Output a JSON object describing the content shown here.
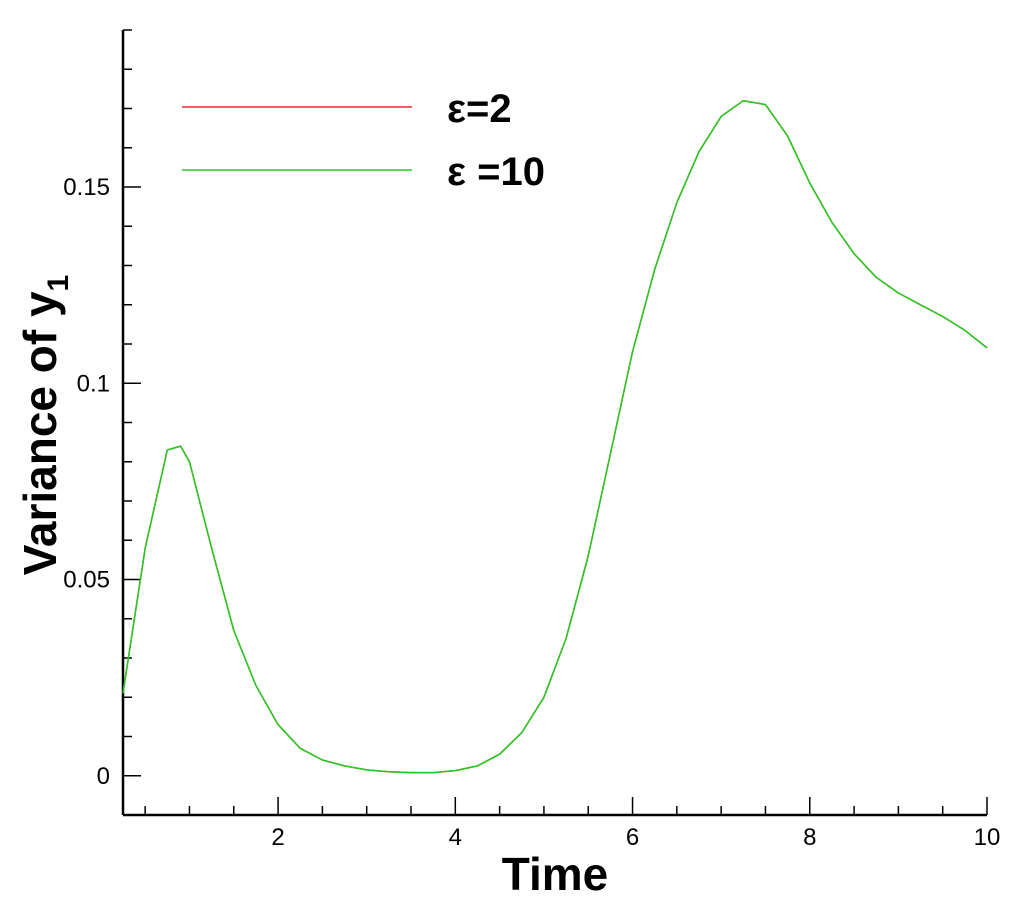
{
  "chart_data": {
    "type": "line",
    "xlabel": "Time",
    "ylabel_main": "Variance of y",
    "ylabel_sub": "1",
    "xlim": [
      0.25,
      10
    ],
    "ylim": [
      -0.01,
      0.19
    ],
    "x_ticks": [
      2,
      4,
      6,
      8,
      10
    ],
    "x_tick_labels": [
      "2",
      "4",
      "6",
      "8",
      "10"
    ],
    "y_ticks": [
      0,
      0.05,
      0.1,
      0.15
    ],
    "y_tick_labels": [
      "0",
      "0.05",
      "0.1",
      "0.15"
    ],
    "grid": false,
    "legend_position": "top-left",
    "colors": {
      "eps2": "#e03030",
      "eps10": "#22cc22",
      "axis": "#000000"
    },
    "series": [
      {
        "name": "ε=2",
        "x": [
          0.25,
          0.5,
          0.75,
          0.9,
          1.0,
          1.25,
          1.5,
          1.75,
          2.0,
          2.25,
          2.5,
          2.75,
          3.0,
          3.25,
          3.5,
          3.75,
          4.0,
          4.25,
          4.5,
          4.75,
          5.0,
          5.25,
          5.5,
          5.75,
          6.0,
          6.25,
          6.5,
          6.75,
          7.0,
          7.25,
          7.5,
          7.75,
          8.0,
          8.25,
          8.5,
          8.75,
          9.0,
          9.25,
          9.5,
          9.75,
          10.0
        ],
        "y": [
          0.021,
          0.058,
          0.083,
          0.084,
          0.08,
          0.058,
          0.037,
          0.023,
          0.013,
          0.007,
          0.004,
          0.0025,
          0.0015,
          0.001,
          0.0008,
          0.0008,
          0.0013,
          0.0025,
          0.0055,
          0.011,
          0.02,
          0.035,
          0.056,
          0.082,
          0.108,
          0.129,
          0.146,
          0.159,
          0.168,
          0.172,
          0.171,
          0.163,
          0.151,
          0.141,
          0.133,
          0.127,
          0.123,
          0.12,
          0.117,
          0.1135,
          0.109
        ]
      },
      {
        "name": "ε =10",
        "x": [
          0.25,
          0.5,
          0.75,
          0.9,
          1.0,
          1.25,
          1.5,
          1.75,
          2.0,
          2.25,
          2.5,
          2.75,
          3.0,
          3.25,
          3.5,
          3.75,
          4.0,
          4.25,
          4.5,
          4.75,
          5.0,
          5.25,
          5.5,
          5.75,
          6.0,
          6.25,
          6.5,
          6.75,
          7.0,
          7.25,
          7.5,
          7.75,
          8.0,
          8.25,
          8.5,
          8.75,
          9.0,
          9.25,
          9.5,
          9.75,
          10.0
        ],
        "y": [
          0.021,
          0.058,
          0.083,
          0.084,
          0.08,
          0.058,
          0.037,
          0.023,
          0.013,
          0.007,
          0.004,
          0.0025,
          0.0015,
          0.001,
          0.0008,
          0.0008,
          0.0013,
          0.0025,
          0.0055,
          0.011,
          0.02,
          0.035,
          0.056,
          0.082,
          0.108,
          0.129,
          0.146,
          0.159,
          0.168,
          0.172,
          0.171,
          0.163,
          0.151,
          0.141,
          0.133,
          0.127,
          0.123,
          0.12,
          0.117,
          0.1135,
          0.109
        ]
      }
    ]
  }
}
